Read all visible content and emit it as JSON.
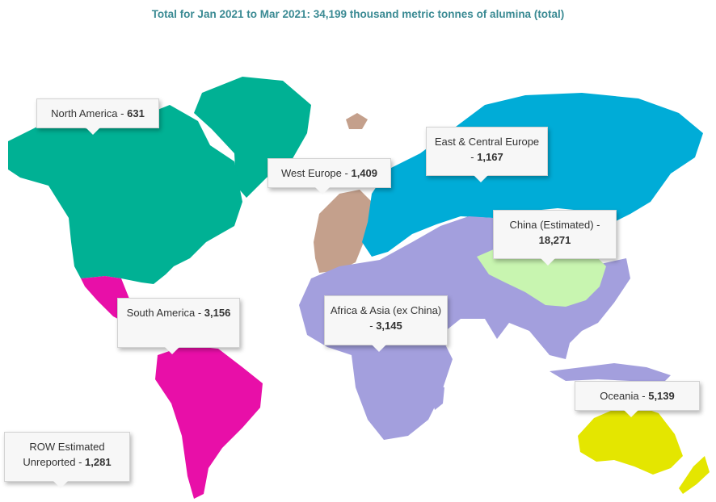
{
  "title": "Total for Jan 2021 to Mar 2021: 34,199 thousand metric tonnes of alumina  (total)",
  "colors": {
    "north_america": "#00b194",
    "south_america": "#e80fa8",
    "west_europe": "#c4a08c",
    "east_central_europe": "#00acd7",
    "china": "#c8f5b0",
    "africa_asia": "#a39fdd",
    "oceania": "#e4e600",
    "title": "#3a8a93"
  },
  "regions": [
    {
      "id": "north-america",
      "name": "North America -",
      "value": "631"
    },
    {
      "id": "west-europe",
      "name": "West Europe -",
      "value": "1,409"
    },
    {
      "id": "east-central-europe",
      "name": "East & Central Europe -",
      "value": "1,167"
    },
    {
      "id": "china",
      "name": "China (Estimated) -",
      "value": "18,271"
    },
    {
      "id": "south-america",
      "name": "South America -",
      "value": "3,156"
    },
    {
      "id": "africa-asia",
      "name": "Africa & Asia (ex China) -",
      "value": "3,145"
    },
    {
      "id": "oceania",
      "name": "Oceania -",
      "value": "5,139"
    },
    {
      "id": "row",
      "name": "ROW Estimated Unreported -",
      "value": "1,281"
    }
  ]
}
